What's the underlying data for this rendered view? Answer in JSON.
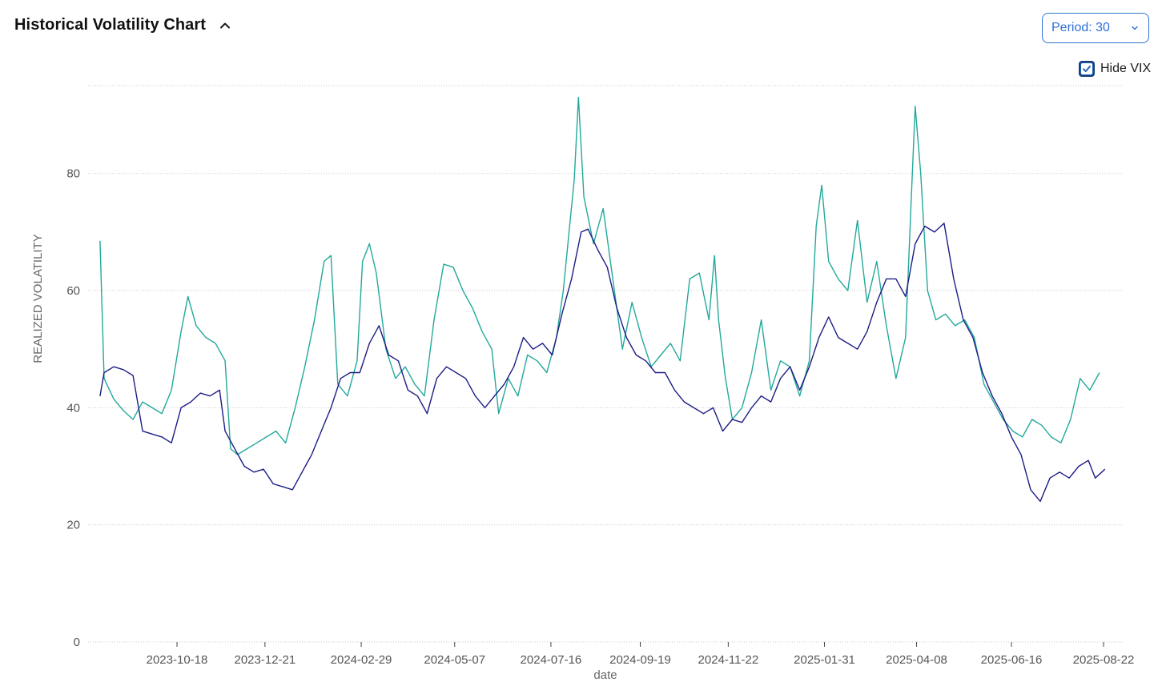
{
  "header": {
    "title": "Historical Volatility Chart",
    "collapse_icon": "chevron-up-icon"
  },
  "controls": {
    "period_label": "Period: 30",
    "period_icon": "chevron-down-icon",
    "hide_vix_label": "Hide VIX",
    "hide_vix_checked": true
  },
  "colors": {
    "series_teal": "#22a99b",
    "series_navy": "#1c1c86",
    "grid": "#c8c8c8",
    "accent_blue": "#2f6fd6"
  },
  "chart_data": {
    "type": "line",
    "xlabel": "date",
    "ylabel": "REALIZED VOLATILITY",
    "ylim": [
      0,
      95
    ],
    "yticks": [
      0,
      20,
      40,
      60,
      80
    ],
    "xticks": [
      "2023-10-18",
      "2023-12-21",
      "2024-02-29",
      "2024-05-07",
      "2024-07-16",
      "2024-09-19",
      "2024-11-22",
      "2025-01-31",
      "2025-04-08",
      "2025-06-16",
      "2025-08-22"
    ],
    "grid": true,
    "legend": "none",
    "series": [
      {
        "color": "#22a99b",
        "points": [
          [
            "2023-08-23",
            68.5
          ],
          [
            "2023-08-26",
            45
          ],
          [
            "2023-09-02",
            41.5
          ],
          [
            "2023-09-09",
            39.5
          ],
          [
            "2023-09-16",
            38
          ],
          [
            "2023-09-23",
            41
          ],
          [
            "2023-09-30",
            40
          ],
          [
            "2023-10-07",
            39
          ],
          [
            "2023-10-14",
            43
          ],
          [
            "2023-10-21",
            53
          ],
          [
            "2023-10-26",
            59
          ],
          [
            "2023-11-01",
            54
          ],
          [
            "2023-11-08",
            52
          ],
          [
            "2023-11-15",
            51
          ],
          [
            "2023-11-22",
            48
          ],
          [
            "2023-11-26",
            33
          ],
          [
            "2023-12-01",
            32
          ],
          [
            "2023-12-08",
            33
          ],
          [
            "2023-12-15",
            34
          ],
          [
            "2023-12-22",
            35
          ],
          [
            "2023-12-29",
            36
          ],
          [
            "2024-01-05",
            34
          ],
          [
            "2024-01-12",
            40
          ],
          [
            "2024-01-19",
            47
          ],
          [
            "2024-01-26",
            55
          ],
          [
            "2024-02-02",
            65
          ],
          [
            "2024-02-07",
            66
          ],
          [
            "2024-02-12",
            44
          ],
          [
            "2024-02-19",
            42
          ],
          [
            "2024-02-26",
            48
          ],
          [
            "2024-03-01",
            65
          ],
          [
            "2024-03-06",
            68
          ],
          [
            "2024-03-11",
            63
          ],
          [
            "2024-03-18",
            50
          ],
          [
            "2024-03-25",
            45
          ],
          [
            "2024-04-01",
            47
          ],
          [
            "2024-04-08",
            44
          ],
          [
            "2024-04-15",
            42
          ],
          [
            "2024-04-22",
            55
          ],
          [
            "2024-04-29",
            64.5
          ],
          [
            "2024-05-06",
            64
          ],
          [
            "2024-05-13",
            60
          ],
          [
            "2024-05-20",
            57
          ],
          [
            "2024-05-27",
            53
          ],
          [
            "2024-06-03",
            50
          ],
          [
            "2024-06-08",
            39
          ],
          [
            "2024-06-15",
            45
          ],
          [
            "2024-06-22",
            42
          ],
          [
            "2024-06-29",
            49
          ],
          [
            "2024-07-06",
            48
          ],
          [
            "2024-07-13",
            46
          ],
          [
            "2024-07-20",
            52
          ],
          [
            "2024-07-25",
            60
          ],
          [
            "2024-07-30",
            72
          ],
          [
            "2024-08-02",
            79
          ],
          [
            "2024-08-05",
            93
          ],
          [
            "2024-08-09",
            76
          ],
          [
            "2024-08-16",
            68
          ],
          [
            "2024-08-23",
            74
          ],
          [
            "2024-08-30",
            62
          ],
          [
            "2024-09-06",
            50
          ],
          [
            "2024-09-13",
            58
          ],
          [
            "2024-09-20",
            52
          ],
          [
            "2024-09-27",
            47
          ],
          [
            "2024-10-04",
            49
          ],
          [
            "2024-10-11",
            51
          ],
          [
            "2024-10-18",
            48
          ],
          [
            "2024-10-25",
            62
          ],
          [
            "2024-11-01",
            63
          ],
          [
            "2024-11-08",
            55
          ],
          [
            "2024-11-12",
            66
          ],
          [
            "2024-11-15",
            55
          ],
          [
            "2024-11-20",
            45
          ],
          [
            "2024-11-25",
            38
          ],
          [
            "2024-12-02",
            40
          ],
          [
            "2024-12-09",
            46
          ],
          [
            "2024-12-16",
            55
          ],
          [
            "2024-12-23",
            43
          ],
          [
            "2024-12-30",
            48
          ],
          [
            "2025-01-06",
            47
          ],
          [
            "2025-01-13",
            42
          ],
          [
            "2025-01-20",
            48
          ],
          [
            "2025-01-25",
            71
          ],
          [
            "2025-01-29",
            78
          ],
          [
            "2025-02-03",
            65
          ],
          [
            "2025-02-10",
            62
          ],
          [
            "2025-02-17",
            60
          ],
          [
            "2025-02-24",
            72
          ],
          [
            "2025-03-03",
            58
          ],
          [
            "2025-03-10",
            65
          ],
          [
            "2025-03-17",
            54
          ],
          [
            "2025-03-24",
            45
          ],
          [
            "2025-03-31",
            52
          ],
          [
            "2025-04-04",
            75
          ],
          [
            "2025-04-07",
            91.5
          ],
          [
            "2025-04-11",
            80
          ],
          [
            "2025-04-16",
            60
          ],
          [
            "2025-04-22",
            55
          ],
          [
            "2025-04-29",
            56
          ],
          [
            "2025-05-06",
            54
          ],
          [
            "2025-05-13",
            55
          ],
          [
            "2025-05-20",
            52
          ],
          [
            "2025-05-27",
            44
          ],
          [
            "2025-06-03",
            41
          ],
          [
            "2025-06-10",
            38
          ],
          [
            "2025-06-17",
            36
          ],
          [
            "2025-06-24",
            35
          ],
          [
            "2025-07-01",
            38
          ],
          [
            "2025-07-08",
            37
          ],
          [
            "2025-07-15",
            35
          ],
          [
            "2025-07-22",
            34
          ],
          [
            "2025-07-29",
            38
          ],
          [
            "2025-08-05",
            45
          ],
          [
            "2025-08-12",
            43
          ],
          [
            "2025-08-19",
            46
          ]
        ]
      },
      {
        "color": "#1c1c86",
        "points": [
          [
            "2023-08-23",
            42
          ],
          [
            "2023-08-26",
            46
          ],
          [
            "2023-09-02",
            47
          ],
          [
            "2023-09-09",
            46.5
          ],
          [
            "2023-09-16",
            45.5
          ],
          [
            "2023-09-23",
            36
          ],
          [
            "2023-09-30",
            35.5
          ],
          [
            "2023-10-07",
            35
          ],
          [
            "2023-10-14",
            34
          ],
          [
            "2023-10-21",
            40
          ],
          [
            "2023-10-28",
            41
          ],
          [
            "2023-11-04",
            42.5
          ],
          [
            "2023-11-11",
            42
          ],
          [
            "2023-11-18",
            43
          ],
          [
            "2023-11-22",
            36
          ],
          [
            "2023-11-29",
            33
          ],
          [
            "2023-12-06",
            30
          ],
          [
            "2023-12-13",
            29
          ],
          [
            "2023-12-20",
            29.5
          ],
          [
            "2023-12-27",
            27
          ],
          [
            "2024-01-03",
            26.5
          ],
          [
            "2024-01-10",
            26
          ],
          [
            "2024-01-17",
            29
          ],
          [
            "2024-01-24",
            32
          ],
          [
            "2024-01-31",
            36
          ],
          [
            "2024-02-07",
            40
          ],
          [
            "2024-02-14",
            45
          ],
          [
            "2024-02-21",
            46
          ],
          [
            "2024-02-28",
            46
          ],
          [
            "2024-03-06",
            51
          ],
          [
            "2024-03-13",
            54
          ],
          [
            "2024-03-20",
            49
          ],
          [
            "2024-03-27",
            48
          ],
          [
            "2024-04-03",
            43
          ],
          [
            "2024-04-10",
            42
          ],
          [
            "2024-04-17",
            39
          ],
          [
            "2024-04-24",
            45
          ],
          [
            "2024-05-01",
            47
          ],
          [
            "2024-05-08",
            46
          ],
          [
            "2024-05-15",
            45
          ],
          [
            "2024-05-22",
            42
          ],
          [
            "2024-05-29",
            40
          ],
          [
            "2024-06-05",
            42
          ],
          [
            "2024-06-12",
            44
          ],
          [
            "2024-06-19",
            47
          ],
          [
            "2024-06-26",
            52
          ],
          [
            "2024-07-03",
            50
          ],
          [
            "2024-07-10",
            51
          ],
          [
            "2024-07-17",
            49
          ],
          [
            "2024-07-24",
            56
          ],
          [
            "2024-07-31",
            62
          ],
          [
            "2024-08-07",
            70
          ],
          [
            "2024-08-12",
            70.5
          ],
          [
            "2024-08-19",
            67
          ],
          [
            "2024-08-26",
            64
          ],
          [
            "2024-09-02",
            57
          ],
          [
            "2024-09-09",
            52
          ],
          [
            "2024-09-16",
            49
          ],
          [
            "2024-09-23",
            48
          ],
          [
            "2024-09-30",
            46
          ],
          [
            "2024-10-07",
            46
          ],
          [
            "2024-10-14",
            43
          ],
          [
            "2024-10-21",
            41
          ],
          [
            "2024-10-28",
            40
          ],
          [
            "2024-11-04",
            39
          ],
          [
            "2024-11-11",
            40
          ],
          [
            "2024-11-18",
            36
          ],
          [
            "2024-11-25",
            38
          ],
          [
            "2024-12-02",
            37.5
          ],
          [
            "2024-12-09",
            40
          ],
          [
            "2024-12-16",
            42
          ],
          [
            "2024-12-23",
            41
          ],
          [
            "2024-12-30",
            45
          ],
          [
            "2025-01-06",
            47
          ],
          [
            "2025-01-13",
            43
          ],
          [
            "2025-01-20",
            47
          ],
          [
            "2025-01-27",
            52
          ],
          [
            "2025-02-03",
            55.5
          ],
          [
            "2025-02-10",
            52
          ],
          [
            "2025-02-17",
            51
          ],
          [
            "2025-02-24",
            50
          ],
          [
            "2025-03-03",
            53
          ],
          [
            "2025-03-10",
            58
          ],
          [
            "2025-03-17",
            62
          ],
          [
            "2025-03-24",
            62
          ],
          [
            "2025-03-31",
            59
          ],
          [
            "2025-04-07",
            68
          ],
          [
            "2025-04-14",
            71
          ],
          [
            "2025-04-21",
            70
          ],
          [
            "2025-04-28",
            71.5
          ],
          [
            "2025-05-05",
            62
          ],
          [
            "2025-05-12",
            55
          ],
          [
            "2025-05-19",
            52
          ],
          [
            "2025-05-26",
            46
          ],
          [
            "2025-06-02",
            42
          ],
          [
            "2025-06-09",
            39
          ],
          [
            "2025-06-16",
            35
          ],
          [
            "2025-06-23",
            32
          ],
          [
            "2025-06-30",
            26
          ],
          [
            "2025-07-07",
            24
          ],
          [
            "2025-07-14",
            28
          ],
          [
            "2025-07-21",
            29
          ],
          [
            "2025-07-28",
            28
          ],
          [
            "2025-08-04",
            30
          ],
          [
            "2025-08-11",
            31
          ],
          [
            "2025-08-16",
            28
          ],
          [
            "2025-08-23",
            29.5
          ]
        ]
      }
    ]
  }
}
